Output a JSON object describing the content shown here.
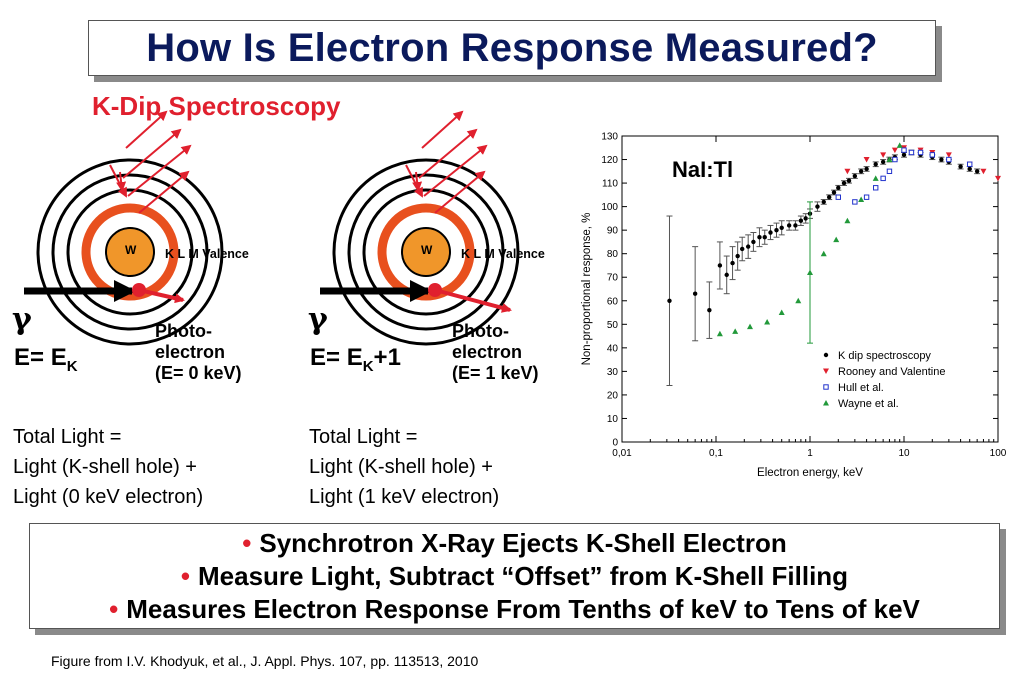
{
  "title": "How Is Electron Response Measured?",
  "subtitle": "K-Dip Spectroscopy",
  "diagram_left": {
    "nucleus": "W",
    "shells": "K L M Valence",
    "gamma": "γ",
    "energy_main": "E= E",
    "energy_sub": "K",
    "energy_suffix": "",
    "photo_lines": [
      "Photo-",
      "electron",
      "(E= 0 keV)"
    ],
    "total_lines": [
      "Total Light =",
      "Light (K-shell hole) +",
      "Light (0 keV electron)"
    ]
  },
  "diagram_right": {
    "nucleus": "W",
    "shells": "K L M Valence",
    "gamma": "γ",
    "energy_main": "E= E",
    "energy_sub": "K",
    "energy_suffix": "+1",
    "photo_lines": [
      "Photo-",
      "electron",
      "(E= 1 keV)"
    ],
    "total_lines": [
      "Total Light =",
      "Light (K-shell hole) +",
      "Light (1 keV electron)"
    ]
  },
  "plot_label": "NaI:Tl",
  "chart_data": {
    "type": "scatter",
    "xlabel": "Electron energy, keV",
    "ylabel": "Non-proportional response, %",
    "xscale": "log",
    "xlim": [
      0.01,
      100
    ],
    "ylim": [
      0,
      130
    ],
    "x_ticks": [
      "0,01",
      "0,1",
      "1",
      "10",
      "100"
    ],
    "y_ticks": [
      "0",
      "10",
      "20",
      "30",
      "40",
      "50",
      "60",
      "70",
      "80",
      "90",
      "100",
      "110",
      "120",
      "130"
    ],
    "legend_position": "bottom-right",
    "series": [
      {
        "name": "K dip spectroscopy",
        "color": "#000000",
        "marker": "circle",
        "x": [
          0.032,
          0.06,
          0.085,
          0.11,
          0.13,
          0.15,
          0.17,
          0.19,
          0.22,
          0.25,
          0.29,
          0.33,
          0.38,
          0.44,
          0.5,
          0.6,
          0.7,
          0.8,
          0.9,
          1.0,
          1.2,
          1.4,
          1.6,
          1.8,
          2.0,
          2.3,
          2.6,
          3.0,
          3.5,
          4,
          5,
          6,
          7,
          8,
          10,
          12,
          15,
          20,
          25,
          30,
          40,
          50,
          60
        ],
        "y": [
          60,
          63,
          56,
          75,
          71,
          76,
          79,
          82,
          83,
          85,
          87,
          87,
          89,
          90,
          91,
          92,
          92,
          94,
          95,
          97,
          100,
          102,
          104,
          106,
          108,
          110,
          111,
          113,
          115,
          116,
          118,
          119,
          120,
          121,
          122,
          123,
          122,
          121,
          120,
          119,
          117,
          116,
          115
        ],
        "err": [
          36,
          20,
          12,
          10,
          8,
          7,
          6,
          5,
          5,
          4,
          4,
          3,
          3,
          3,
          3,
          2,
          2,
          2,
          2,
          2,
          2,
          1,
          1,
          1,
          1,
          1,
          1,
          1,
          1,
          1,
          1,
          1,
          1,
          1,
          1,
          1,
          1,
          1,
          1,
          1,
          1,
          1,
          1
        ]
      },
      {
        "name": "Rooney and Valentine",
        "color": "#e0202e",
        "marker": "triangle-down",
        "x": [
          2.5,
          4,
          6,
          8,
          10,
          15,
          20,
          30,
          50,
          70,
          100
        ],
        "y": [
          115,
          120,
          122,
          124,
          125,
          124,
          123,
          122,
          118,
          115,
          112
        ]
      },
      {
        "name": "Hull et al.",
        "color": "#2233cc",
        "marker": "square",
        "x": [
          2.0,
          3.0,
          4,
          5,
          6,
          7,
          8,
          10,
          12,
          15,
          20,
          30,
          50
        ],
        "y": [
          104,
          102,
          104,
          108,
          112,
          115,
          120,
          124,
          123,
          123,
          122,
          120,
          118
        ]
      },
      {
        "name": "Wayne et al.",
        "color": "#22993a",
        "marker": "triangle",
        "x": [
          0.11,
          0.16,
          0.23,
          0.35,
          0.5,
          0.75,
          1.0,
          1.4,
          1.9,
          2.5,
          3.5,
          5,
          7,
          9
        ],
        "y": [
          46,
          47,
          49,
          51,
          55,
          60,
          72,
          80,
          86,
          94,
          103,
          112,
          120,
          126
        ],
        "err": [
          0,
          0,
          0,
          0,
          0,
          0,
          30,
          0,
          0,
          0,
          0,
          0,
          0,
          0
        ]
      }
    ]
  },
  "bullets": [
    "Synchrotron X-Ray Ejects K-Shell Electron",
    "Measure Light, Subtract “Offset” from K-Shell Filling",
    "Measures Electron Response From Tenths of keV to Tens of keV"
  ],
  "bullet_glyph": "•",
  "caption": "Figure from I.V. Khodyuk, et al., J. Appl. Phys. 107, pp. 113513, 2010",
  "colors": {
    "title": "#0b1a5c",
    "accent": "#e0202e",
    "k_shell": "#e8501e",
    "nucleus": "#f0962a"
  }
}
